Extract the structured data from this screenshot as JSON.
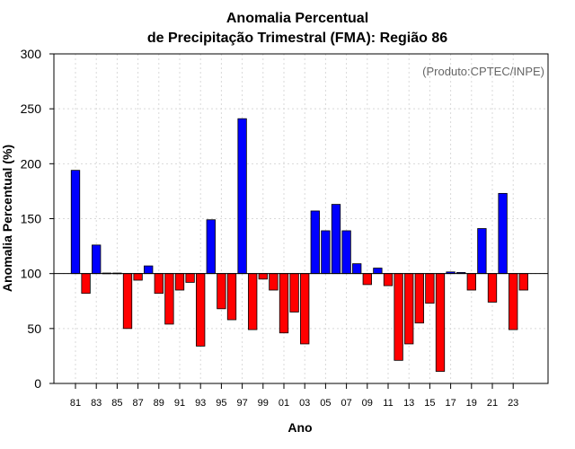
{
  "chart_data": {
    "type": "bar",
    "title": "Anomalia Percentual",
    "subtitle": "de Precipitação Trimestral (FMA): Região 86",
    "xlabel": "Ano",
    "ylabel": "Anomalia Percentual (%)",
    "credit": "(Produto:CPTEC/INPE)",
    "ylim": [
      0,
      300
    ],
    "yticks": [
      0,
      50,
      100,
      150,
      200,
      250,
      300
    ],
    "baseline": 100,
    "grid": true,
    "colors": {
      "above": "#0000ff",
      "below": "#ff0000",
      "edge": "#000000",
      "grid": "#d9d9d9",
      "baseline": "#000000"
    },
    "categories": [
      "81",
      "82",
      "83",
      "84",
      "85",
      "86",
      "87",
      "88",
      "89",
      "90",
      "91",
      "92",
      "93",
      "94",
      "95",
      "96",
      "97",
      "98",
      "99",
      "00",
      "01",
      "02",
      "03",
      "04",
      "05",
      "06",
      "07",
      "08",
      "09",
      "10",
      "11",
      "12",
      "13",
      "14",
      "15",
      "16",
      "17",
      "18",
      "19",
      "20",
      "21",
      "22",
      "23",
      "24"
    ],
    "tick_labels": [
      "81",
      "83",
      "85",
      "87",
      "89",
      "91",
      "93",
      "95",
      "97",
      "99",
      "01",
      "03",
      "05",
      "07",
      "09",
      "11",
      "13",
      "15",
      "17",
      "19",
      "21",
      "23"
    ],
    "values": [
      194,
      82,
      126,
      100.5,
      100.5,
      50,
      94,
      107,
      82,
      54,
      85,
      92,
      34,
      149,
      68,
      58,
      241,
      49,
      95,
      85,
      46,
      65,
      36,
      157,
      139,
      163,
      139,
      109,
      90,
      105,
      89,
      21,
      36,
      55,
      73,
      11,
      101.5,
      101,
      85,
      141,
      74,
      173,
      49,
      85
    ]
  }
}
